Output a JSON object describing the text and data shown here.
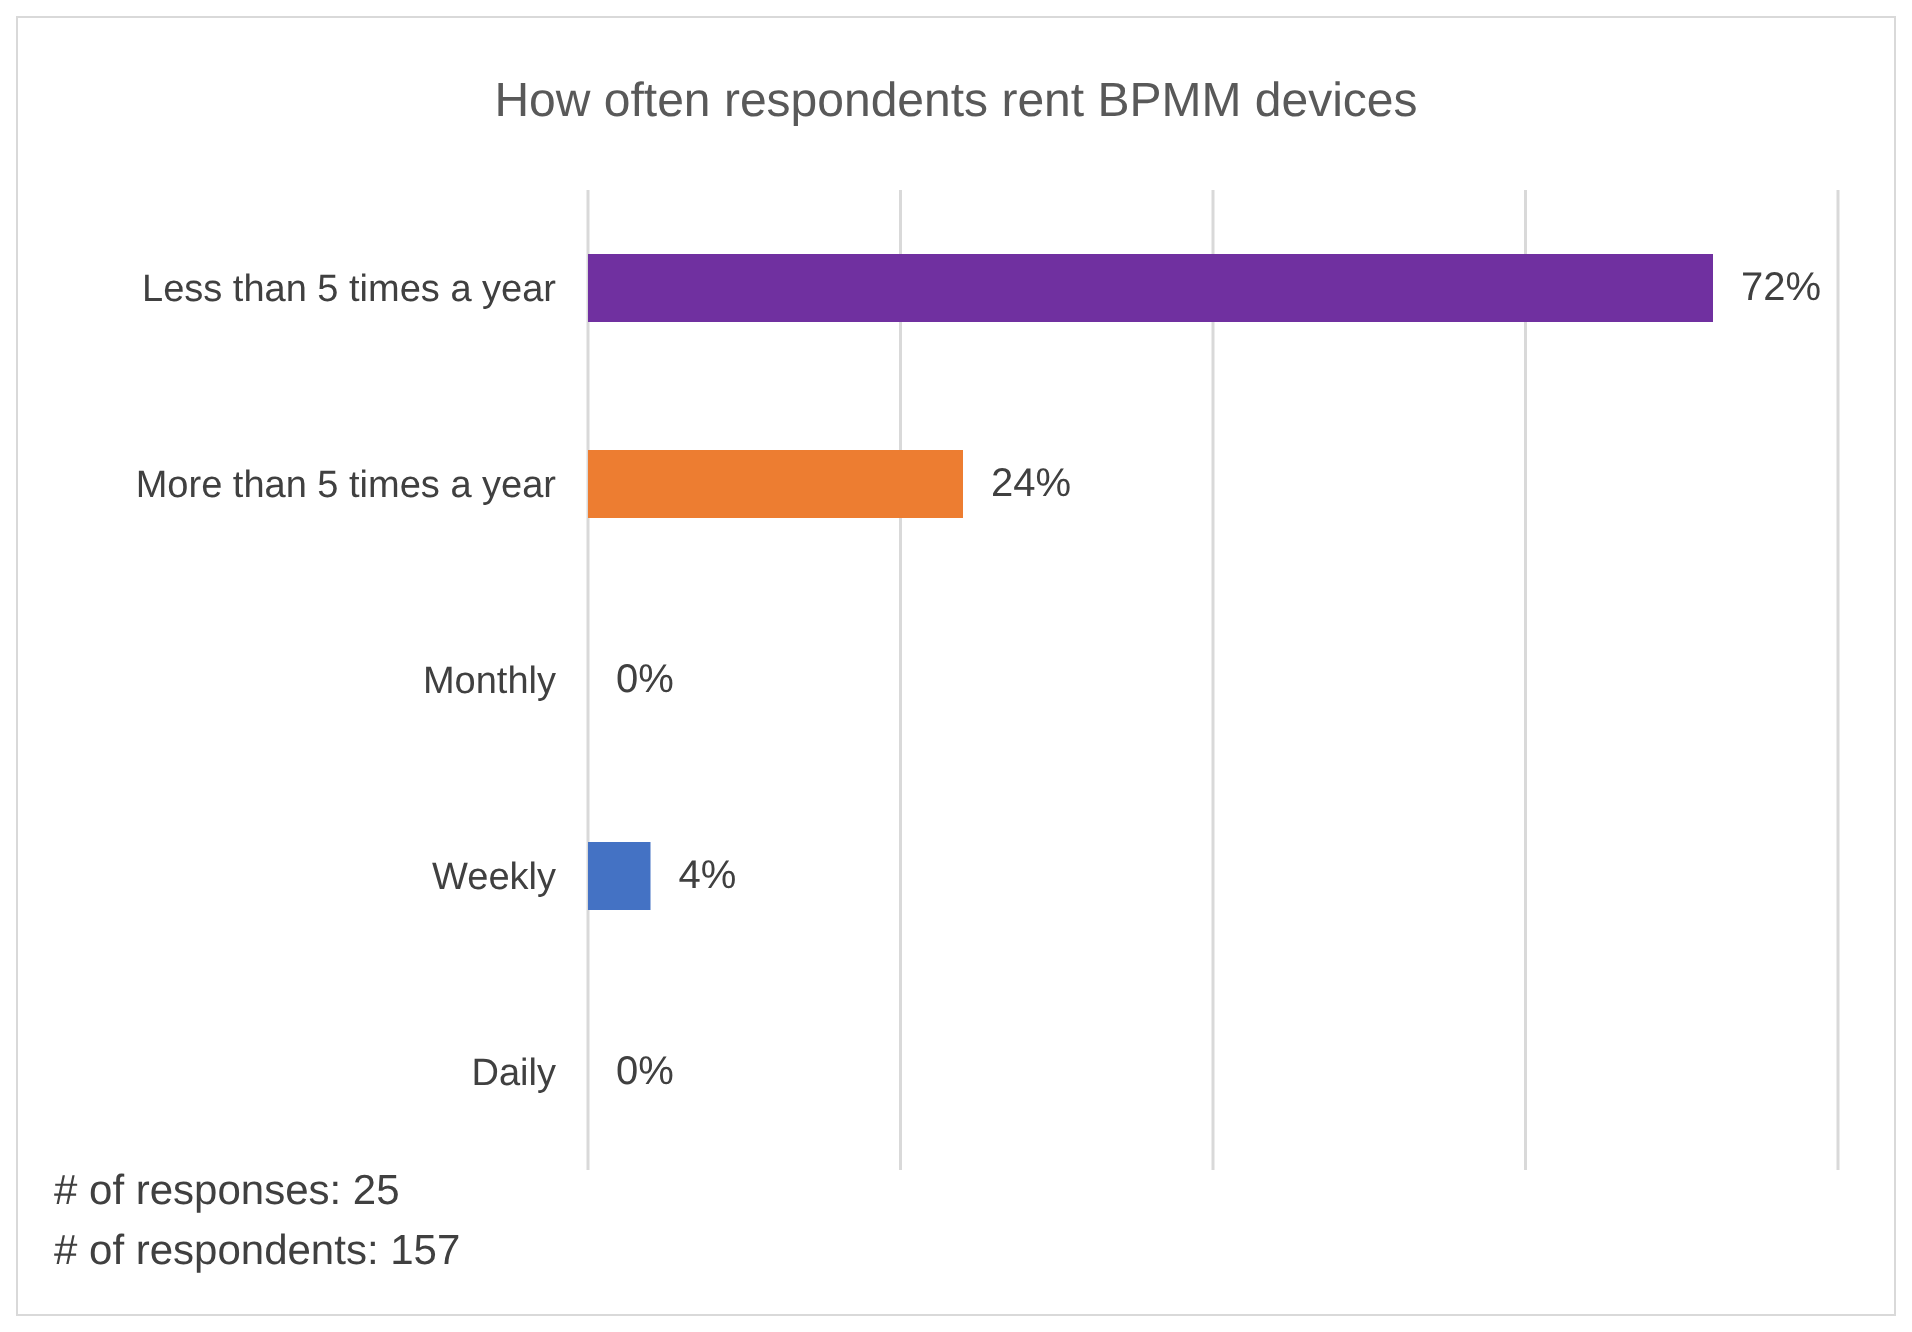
{
  "chart_data": {
    "type": "bar",
    "orientation": "horizontal",
    "title": "How often respondents rent BPMM devices",
    "categories": [
      "Less than 5 times a year",
      "More than 5 times a year",
      "Monthly",
      "Weekly",
      "Daily"
    ],
    "values": [
      72,
      24,
      0,
      4,
      0
    ],
    "colors": [
      "#7030a0",
      "#ed7d31",
      "#a5a5a5",
      "#4472c4",
      "#ffc000"
    ],
    "value_labels": [
      "72%",
      "24%",
      "0%",
      "4%",
      "0%"
    ],
    "xlim": [
      0,
      80
    ],
    "xticks": [
      {
        "value": 0,
        "label": null
      },
      {
        "value": 20,
        "label": null
      },
      {
        "value": 40,
        "label": null
      },
      {
        "value": 60,
        "label": null
      },
      {
        "value": 80,
        "label": null
      }
    ],
    "grid": "x",
    "tick_labels": "y",
    "annotations": [
      "# of responses: 25",
      "# of respondents: 157"
    ]
  }
}
